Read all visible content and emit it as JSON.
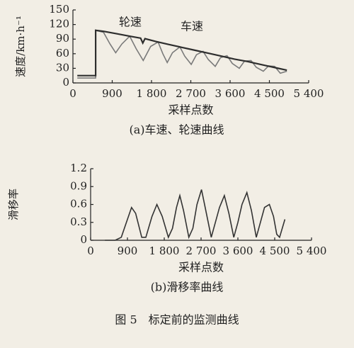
{
  "chart_data": [
    {
      "type": "line",
      "subtitle": "(a)车速、轮速曲线",
      "xlabel": "采样点数",
      "ylabel": "速度/km·h⁻¹",
      "xlim": [
        0,
        5400
      ],
      "xticks": [
        0,
        900,
        {
          "value": 1800,
          "label": "1 800"
        },
        {
          "value": 2700,
          "label": "2 700"
        },
        {
          "value": 3600,
          "label": "3 600"
        },
        {
          "value": 4500,
          "label": "4 500"
        },
        {
          "value": 5400,
          "label": "5 400"
        }
      ],
      "ylim": [
        0,
        150
      ],
      "yticks": [
        0,
        30,
        60,
        90,
        120,
        150
      ],
      "grid": false,
      "series": [
        {
          "name": "轮速",
          "color": "#7a7a7a",
          "x": [
            100,
            300,
            520,
            520,
            700,
            850,
            980,
            1120,
            1300,
            1450,
            1610,
            1780,
            1950,
            2060,
            2160,
            2280,
            2450,
            2560,
            2710,
            2830,
            2980,
            3100,
            3260,
            3380,
            3530,
            3650,
            3810,
            3930,
            4080,
            4200,
            4360,
            4480,
            4620,
            4750,
            4900
          ],
          "values": [
            10,
            10,
            10,
            108,
            104,
            80,
            62,
            80,
            96,
            70,
            46,
            75,
            84,
            60,
            42,
            62,
            74,
            55,
            38,
            58,
            65,
            48,
            34,
            52,
            56,
            40,
            30,
            45,
            46,
            32,
            24,
            35,
            34,
            20,
            24
          ]
        },
        {
          "name": "车速",
          "color": "#2e2e2e",
          "x": [
            100,
            300,
            520,
            520,
            700,
            1000,
            1300,
            1550,
            1600,
            1650,
            1900,
            2200,
            2500,
            2800,
            3100,
            3400,
            3700,
            4000,
            4300,
            4600,
            4900
          ],
          "values": [
            15,
            15,
            15,
            108,
            106,
            101,
            96,
            92,
            82,
            91,
            85,
            79,
            73,
            67,
            61,
            55,
            49,
            44,
            38,
            32,
            26
          ]
        }
      ]
    },
    {
      "type": "line",
      "subtitle": "(b)滑移率曲线",
      "xlabel": "采样点数",
      "ylabel": "滑移率",
      "xlim": [
        0,
        5400
      ],
      "xticks": [
        0,
        900,
        {
          "value": 1800,
          "label": "1 800"
        },
        {
          "value": 2700,
          "label": "2 700"
        },
        {
          "value": 3600,
          "label": "3 600"
        },
        {
          "value": 4500,
          "label": "4 500"
        },
        {
          "value": 5400,
          "label": "5 400"
        }
      ],
      "ylim": [
        0,
        1.2
      ],
      "yticks": [
        0,
        0.3,
        0.6,
        0.9,
        1.2
      ],
      "grid": false,
      "series": [
        {
          "color": "#333333",
          "x": [
            350,
            600,
            750,
            900,
            1000,
            1100,
            1250,
            1350,
            1500,
            1620,
            1750,
            1900,
            2000,
            2100,
            2180,
            2270,
            2400,
            2500,
            2600,
            2710,
            2800,
            2950,
            3050,
            3150,
            3270,
            3380,
            3500,
            3600,
            3700,
            3820,
            3930,
            4050,
            4150,
            4250,
            4370,
            4470,
            4550,
            4620,
            4750
          ],
          "values": [
            0,
            0,
            0.05,
            0.35,
            0.55,
            0.45,
            0.05,
            0.05,
            0.4,
            0.6,
            0.4,
            0.05,
            0.2,
            0.55,
            0.75,
            0.5,
            0.05,
            0.2,
            0.6,
            0.85,
            0.55,
            0.05,
            0.3,
            0.55,
            0.75,
            0.45,
            0.05,
            0.3,
            0.6,
            0.8,
            0.5,
            0.05,
            0.3,
            0.55,
            0.6,
            0.4,
            0.1,
            0.05,
            0.35
          ]
        }
      ]
    }
  ],
  "caption": "图 5　标定前的监测曲线"
}
